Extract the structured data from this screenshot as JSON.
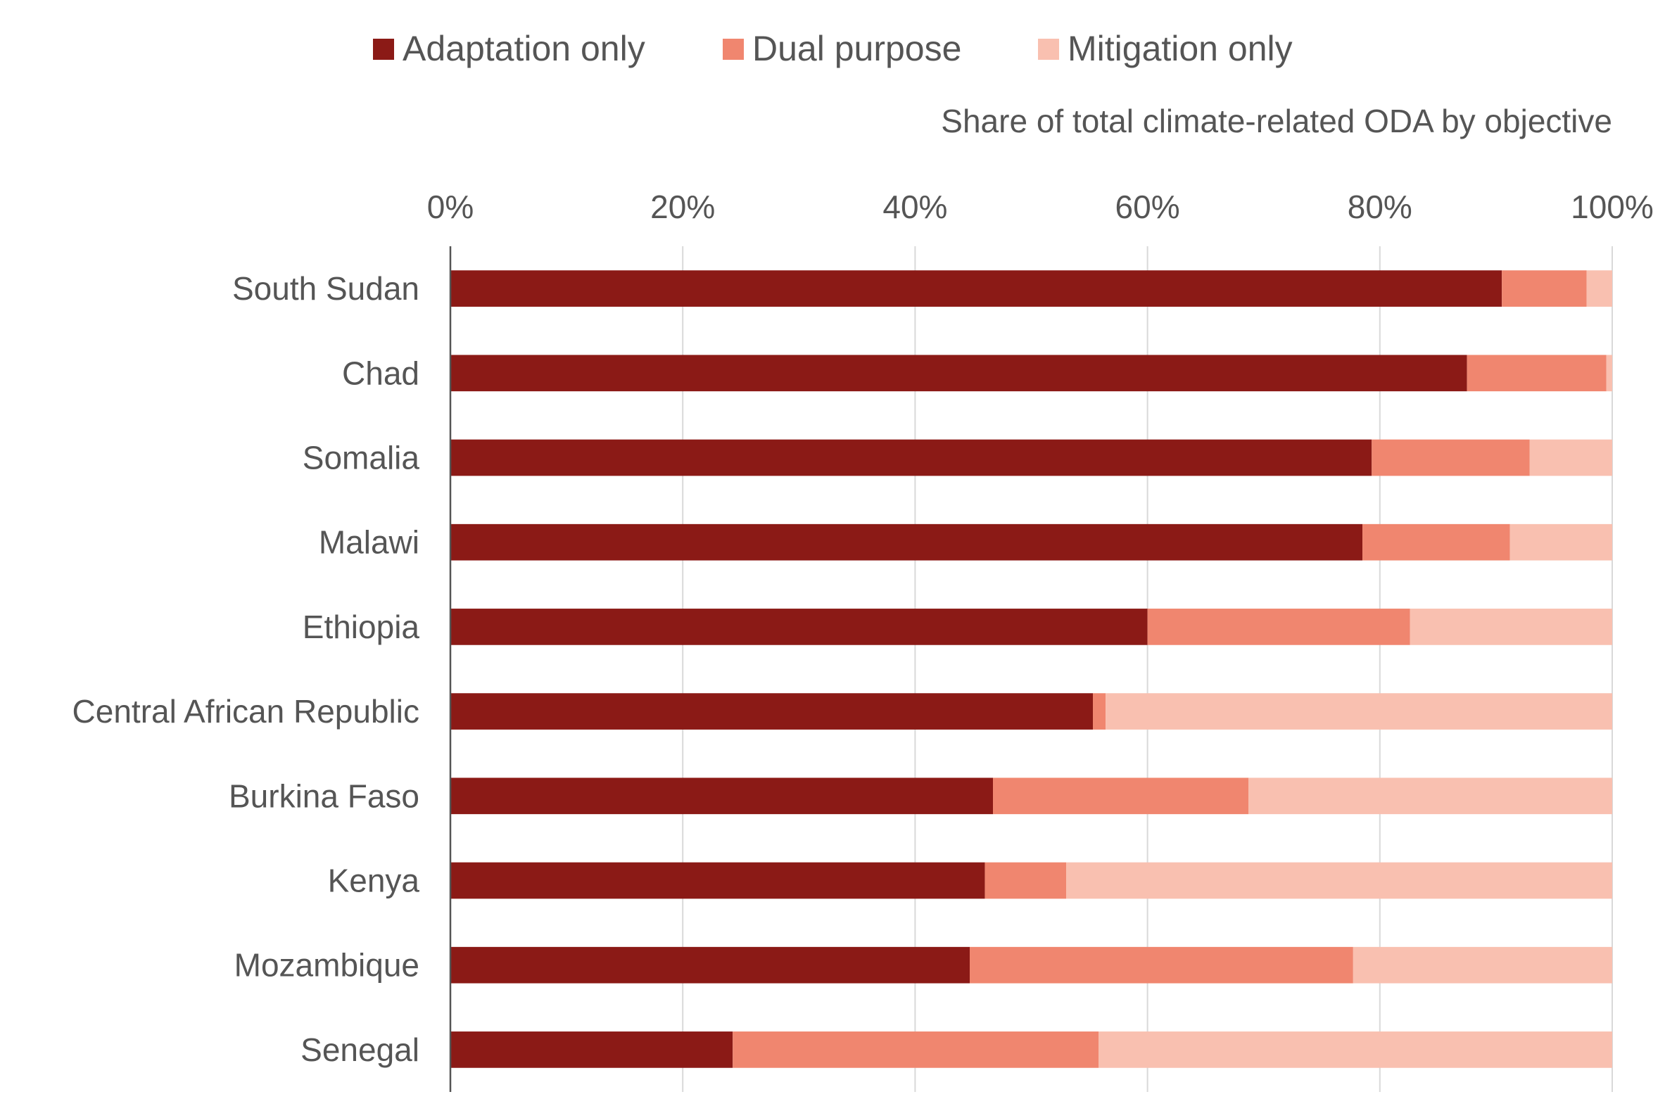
{
  "chart_data": {
    "type": "bar",
    "orientation": "horizontal",
    "stacked": true,
    "axis_title": "Share of total climate-related ODA by objective",
    "xlim": [
      0,
      100
    ],
    "x_ticks": [
      "0%",
      "20%",
      "40%",
      "60%",
      "80%",
      "100%"
    ],
    "grid": true,
    "legend_position": "top",
    "categories": [
      "South Sudan",
      "Chad",
      "Somalia",
      "Malawi",
      "Ethiopia",
      "Central African Republic",
      "Burkina Faso",
      "Kenya",
      "Mozambique",
      "Senegal"
    ],
    "series": [
      {
        "name": "Adaptation only",
        "color": "#8b1a16",
        "values": [
          90.5,
          87.5,
          79.3,
          78.5,
          60.0,
          55.3,
          46.7,
          46.0,
          44.7,
          24.3
        ]
      },
      {
        "name": "Dual purpose",
        "color": "#f0866f",
        "values": [
          7.3,
          12.0,
          13.6,
          12.7,
          22.6,
          1.1,
          22.0,
          7.0,
          33.0,
          31.5
        ]
      },
      {
        "name": "Mitigation only",
        "color": "#f9c0b0",
        "values": [
          2.2,
          0.5,
          7.1,
          8.8,
          17.4,
          43.6,
          31.3,
          47.0,
          22.3,
          44.2
        ]
      }
    ]
  }
}
